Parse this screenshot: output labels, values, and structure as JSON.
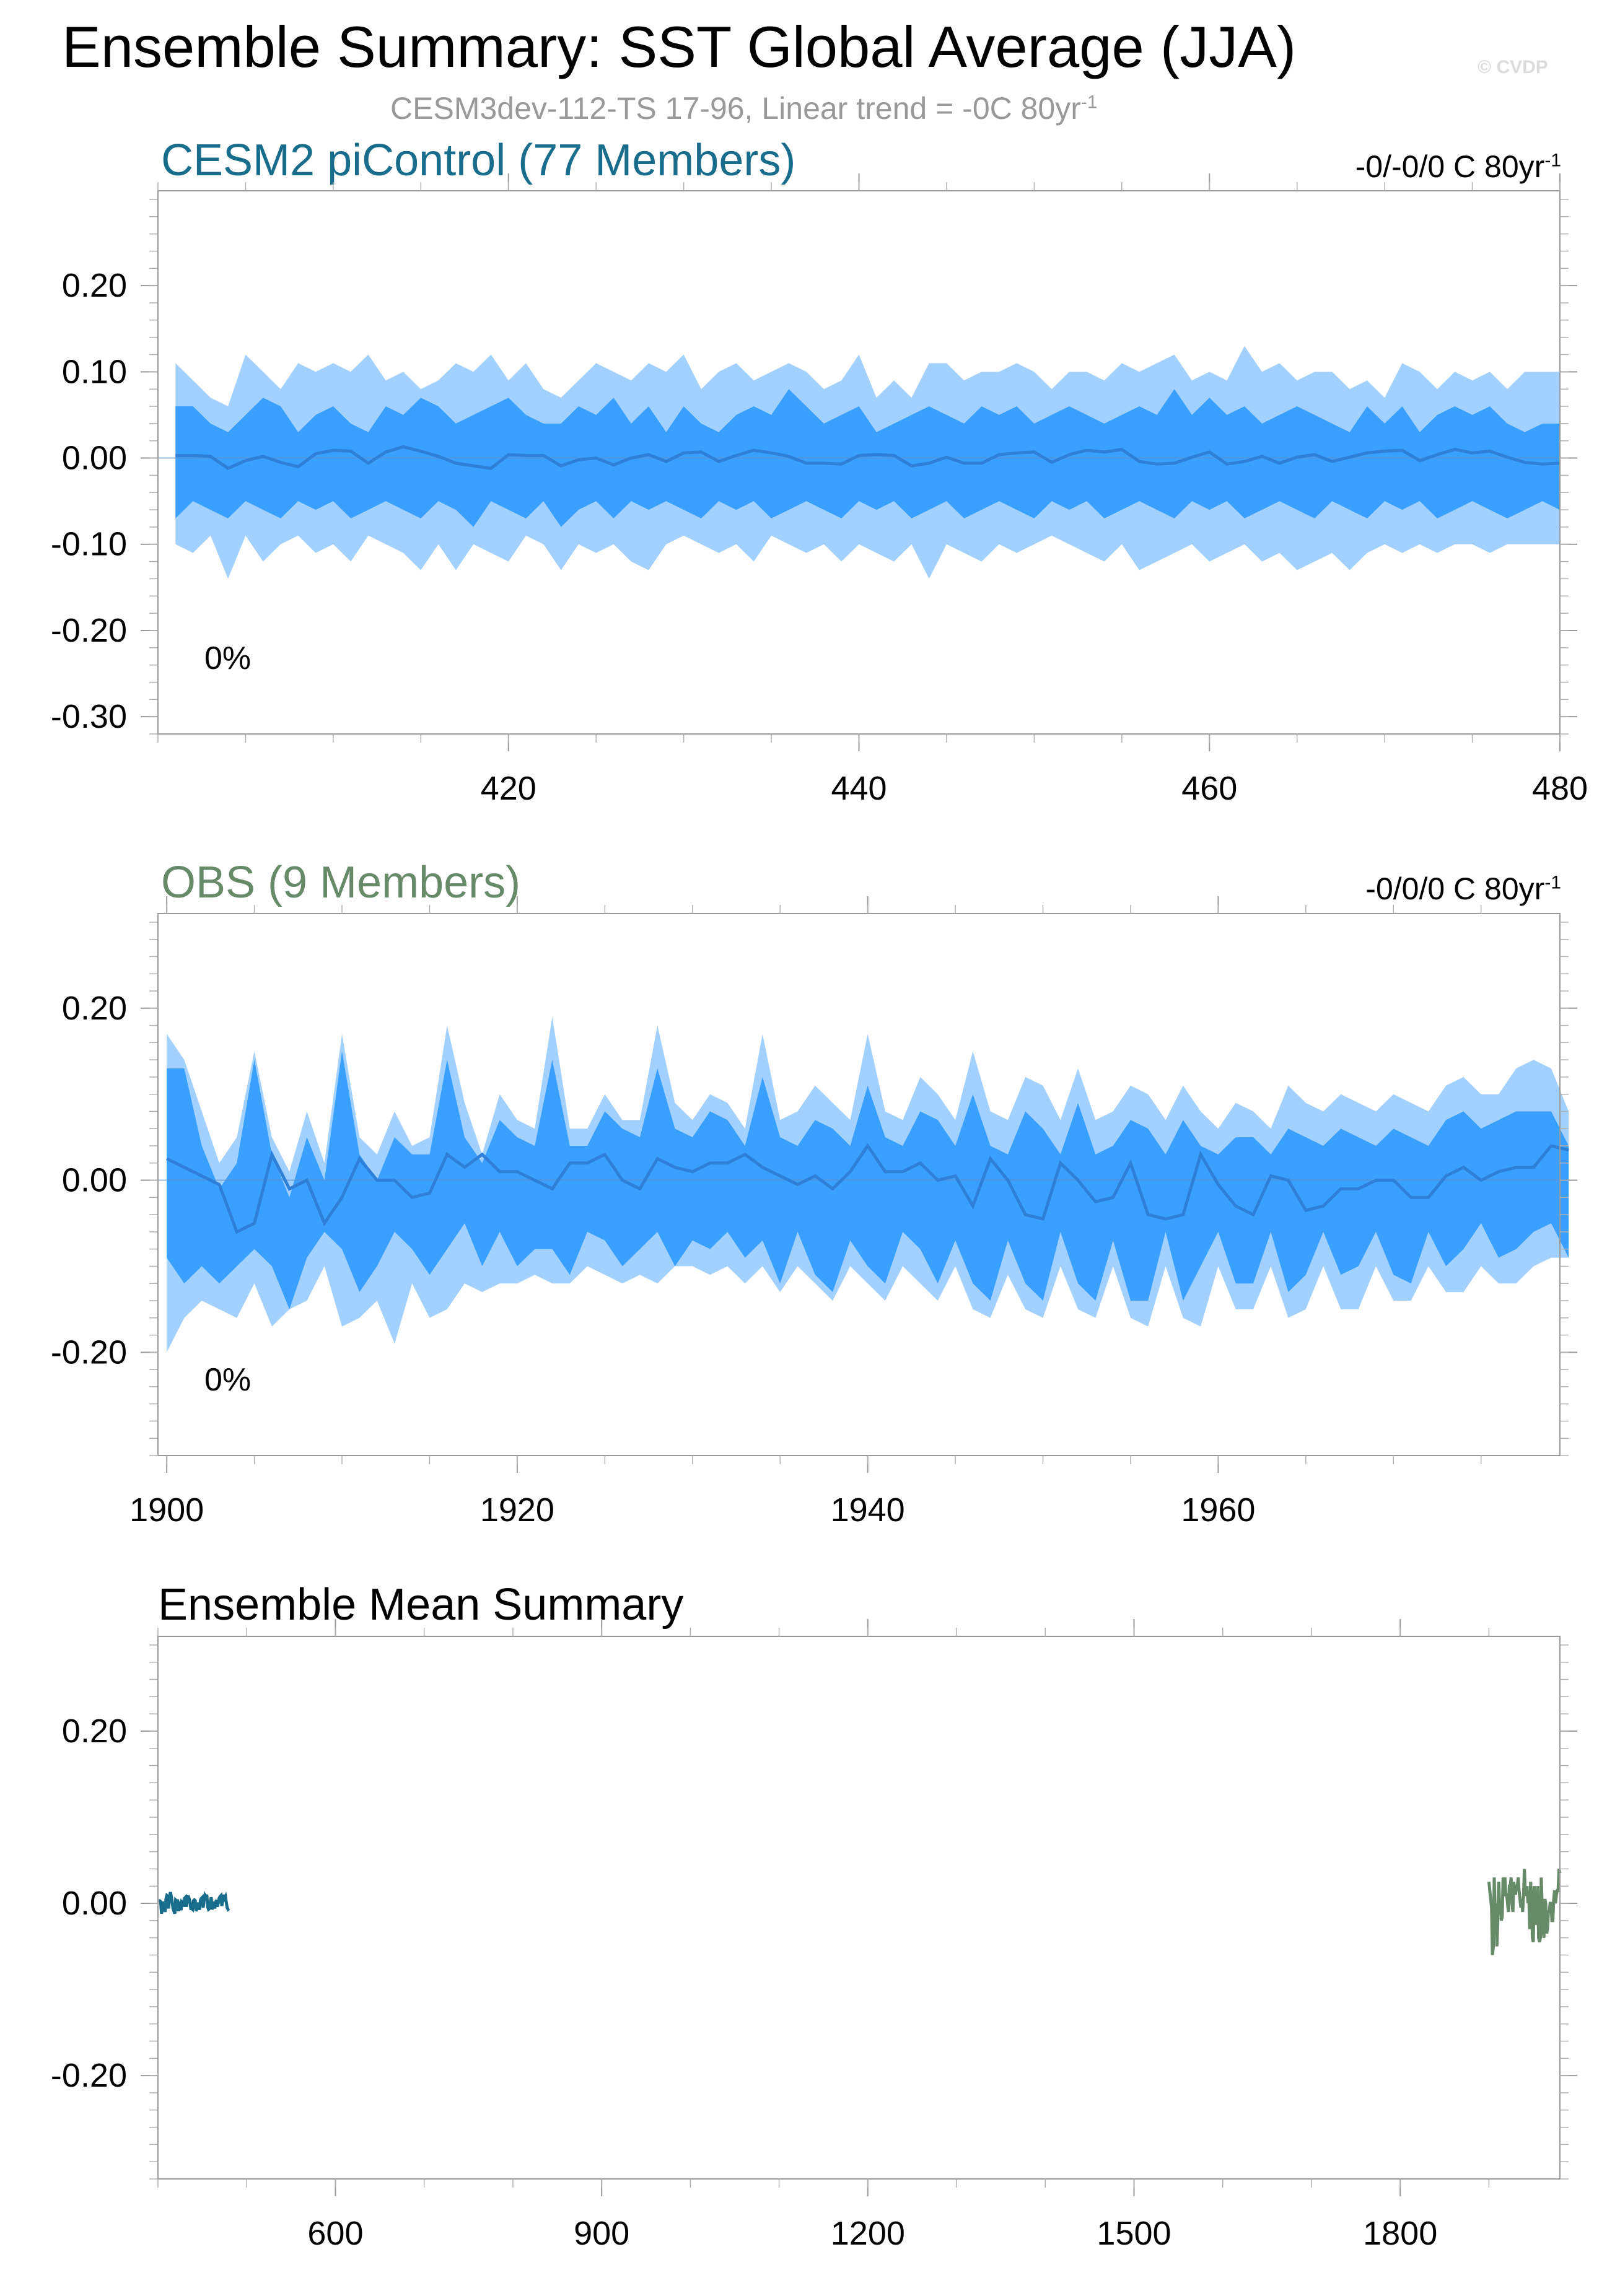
{
  "title": "Ensemble Summary: SST Global Average (JJA)",
  "credit": "© CVDP",
  "subtitle": {
    "text": "CESM3dev-112-TS 17-96, Linear trend = -0C 80yr",
    "sup": "-1"
  },
  "colors": {
    "band_outer": "#a3d1ff",
    "band_inner": "#3aa0ff",
    "mean_line": "#2d7fd8",
    "model_title": "#186c8c",
    "obs_title": "#678b68",
    "model_line": "#186c8c",
    "obs_line": "#678b68"
  },
  "panels": [
    {
      "title": "CESM2 piControl (77 Members)",
      "trend_text": "-0/-0/0 C 80yr",
      "trend_sup": "-1",
      "percent_label": "0%"
    },
    {
      "title": "OBS (9 Members)",
      "trend_text": "-0/0/0 C 80yr",
      "trend_sup": "-1",
      "percent_label": "0%"
    },
    {
      "title": "Ensemble Mean Summary"
    }
  ],
  "chart_data": [
    {
      "type": "area",
      "title": "CESM2 piControl (77 Members)",
      "x_start": 401,
      "xlim": [
        400,
        480
      ],
      "ylim": [
        -0.32,
        0.31
      ],
      "x_ticks": [
        420,
        440,
        460,
        480
      ],
      "x_tick_labels": [
        "420",
        "440",
        "460",
        "480"
      ],
      "y_ticks": [
        0.2,
        0.1,
        0.0,
        -0.1,
        -0.2,
        -0.3
      ],
      "y_tick_labels": [
        "0.20",
        "0.10",
        "0.00",
        "-0.10",
        "-0.20",
        "-0.30"
      ],
      "series": [
        {
          "name": "max",
          "values": [
            0.11,
            0.09,
            0.07,
            0.06,
            0.12,
            0.1,
            0.08,
            0.11,
            0.1,
            0.11,
            0.1,
            0.12,
            0.09,
            0.1,
            0.08,
            0.09,
            0.11,
            0.1,
            0.12,
            0.09,
            0.11,
            0.08,
            0.07,
            0.09,
            0.11,
            0.1,
            0.09,
            0.11,
            0.1,
            0.12,
            0.08,
            0.1,
            0.11,
            0.09,
            0.1,
            0.11,
            0.1,
            0.08,
            0.09,
            0.12,
            0.07,
            0.09,
            0.07,
            0.11,
            0.11,
            0.09,
            0.1,
            0.1,
            0.11,
            0.1,
            0.08,
            0.1,
            0.1,
            0.09,
            0.11,
            0.1,
            0.11,
            0.12,
            0.09,
            0.1,
            0.09,
            0.13,
            0.1,
            0.11,
            0.09,
            0.1,
            0.1,
            0.08,
            0.09,
            0.07,
            0.11,
            0.1,
            0.08,
            0.1,
            0.09,
            0.1,
            0.08,
            0.1,
            0.1,
            0.1
          ]
        },
        {
          "name": "p84",
          "values": [
            0.06,
            0.06,
            0.04,
            0.03,
            0.05,
            0.07,
            0.06,
            0.03,
            0.05,
            0.06,
            0.04,
            0.03,
            0.06,
            0.05,
            0.07,
            0.06,
            0.04,
            0.05,
            0.06,
            0.07,
            0.05,
            0.04,
            0.04,
            0.06,
            0.05,
            0.07,
            0.04,
            0.06,
            0.03,
            0.06,
            0.04,
            0.03,
            0.05,
            0.06,
            0.05,
            0.08,
            0.06,
            0.04,
            0.05,
            0.06,
            0.03,
            0.04,
            0.05,
            0.06,
            0.05,
            0.04,
            0.06,
            0.05,
            0.06,
            0.04,
            0.05,
            0.06,
            0.05,
            0.04,
            0.05,
            0.06,
            0.05,
            0.08,
            0.05,
            0.07,
            0.05,
            0.06,
            0.04,
            0.05,
            0.06,
            0.05,
            0.04,
            0.03,
            0.06,
            0.04,
            0.06,
            0.03,
            0.05,
            0.06,
            0.05,
            0.06,
            0.04,
            0.03,
            0.04,
            0.04
          ]
        },
        {
          "name": "mean",
          "values": [
            0.003,
            0.003,
            0.002,
            -0.012,
            -0.003,
            0.002,
            -0.005,
            -0.01,
            0.005,
            0.009,
            0.008,
            -0.006,
            0.007,
            0.013,
            0.008,
            0.002,
            -0.006,
            -0.009,
            -0.012,
            0.004,
            0.003,
            0.003,
            -0.009,
            -0.002,
            0.0,
            -0.008,
            0.0,
            0.004,
            -0.004,
            0.006,
            0.007,
            -0.004,
            0.003,
            0.009,
            0.006,
            0.002,
            -0.006,
            -0.006,
            -0.007,
            0.003,
            0.004,
            0.003,
            -0.009,
            -0.006,
            0.001,
            -0.006,
            -0.006,
            0.004,
            0.006,
            0.007,
            -0.005,
            0.004,
            0.009,
            0.007,
            0.01,
            -0.004,
            -0.007,
            -0.006,
            0.001,
            0.007,
            -0.007,
            -0.004,
            0.002,
            -0.006,
            0.001,
            0.004,
            -0.004,
            0.001,
            0.006,
            0.008,
            0.009,
            -0.003,
            0.004,
            0.01,
            0.006,
            0.008,
            0.001,
            -0.005,
            -0.007,
            -0.006
          ]
        },
        {
          "name": "p16",
          "values": [
            -0.07,
            -0.05,
            -0.06,
            -0.07,
            -0.05,
            -0.06,
            -0.07,
            -0.05,
            -0.06,
            -0.05,
            -0.07,
            -0.06,
            -0.05,
            -0.06,
            -0.07,
            -0.05,
            -0.06,
            -0.08,
            -0.05,
            -0.06,
            -0.07,
            -0.05,
            -0.08,
            -0.06,
            -0.05,
            -0.07,
            -0.05,
            -0.06,
            -0.05,
            -0.06,
            -0.07,
            -0.05,
            -0.06,
            -0.05,
            -0.07,
            -0.06,
            -0.05,
            -0.06,
            -0.07,
            -0.05,
            -0.06,
            -0.05,
            -0.07,
            -0.06,
            -0.05,
            -0.07,
            -0.06,
            -0.05,
            -0.06,
            -0.07,
            -0.05,
            -0.06,
            -0.05,
            -0.07,
            -0.06,
            -0.05,
            -0.06,
            -0.07,
            -0.05,
            -0.06,
            -0.05,
            -0.07,
            -0.06,
            -0.05,
            -0.06,
            -0.07,
            -0.05,
            -0.06,
            -0.07,
            -0.05,
            -0.06,
            -0.05,
            -0.07,
            -0.06,
            -0.05,
            -0.06,
            -0.07,
            -0.06,
            -0.05,
            -0.06
          ]
        },
        {
          "name": "min",
          "values": [
            -0.1,
            -0.11,
            -0.09,
            -0.14,
            -0.09,
            -0.12,
            -0.1,
            -0.09,
            -0.11,
            -0.1,
            -0.12,
            -0.09,
            -0.1,
            -0.11,
            -0.13,
            -0.1,
            -0.13,
            -0.1,
            -0.11,
            -0.12,
            -0.09,
            -0.1,
            -0.13,
            -0.1,
            -0.11,
            -0.1,
            -0.12,
            -0.13,
            -0.1,
            -0.09,
            -0.1,
            -0.11,
            -0.1,
            -0.12,
            -0.09,
            -0.1,
            -0.11,
            -0.1,
            -0.12,
            -0.1,
            -0.11,
            -0.12,
            -0.1,
            -0.14,
            -0.1,
            -0.11,
            -0.12,
            -0.1,
            -0.11,
            -0.1,
            -0.09,
            -0.1,
            -0.11,
            -0.12,
            -0.1,
            -0.13,
            -0.12,
            -0.11,
            -0.1,
            -0.12,
            -0.11,
            -0.1,
            -0.12,
            -0.11,
            -0.13,
            -0.12,
            -0.11,
            -0.13,
            -0.11,
            -0.1,
            -0.11,
            -0.1,
            -0.11,
            -0.1,
            -0.1,
            -0.11,
            -0.1,
            -0.1,
            -0.1,
            -0.1
          ]
        }
      ]
    },
    {
      "type": "area",
      "title": "OBS (9 Members)",
      "x_start": 1900,
      "xlim": [
        1899.5,
        1979.5
      ],
      "ylim": [
        -0.32,
        0.31
      ],
      "x_ticks": [
        1900,
        1920,
        1940,
        1960
      ],
      "x_tick_labels": [
        "1900",
        "1920",
        "1940",
        "1960"
      ],
      "y_ticks": [
        0.2,
        0.0,
        -0.2
      ],
      "y_tick_labels": [
        "0.20",
        "0.00",
        "-0.20"
      ],
      "series": [
        {
          "name": "max",
          "values": [
            0.17,
            0.14,
            0.08,
            0.02,
            0.05,
            0.15,
            0.05,
            0.01,
            0.08,
            0.02,
            0.17,
            0.05,
            0.03,
            0.08,
            0.04,
            0.05,
            0.18,
            0.09,
            0.03,
            0.1,
            0.07,
            0.06,
            0.19,
            0.06,
            0.06,
            0.1,
            0.07,
            0.07,
            0.18,
            0.09,
            0.07,
            0.1,
            0.09,
            0.06,
            0.17,
            0.07,
            0.08,
            0.11,
            0.09,
            0.07,
            0.17,
            0.08,
            0.07,
            0.12,
            0.1,
            0.07,
            0.15,
            0.08,
            0.07,
            0.12,
            0.11,
            0.07,
            0.13,
            0.07,
            0.08,
            0.11,
            0.1,
            0.07,
            0.11,
            0.08,
            0.06,
            0.09,
            0.08,
            0.06,
            0.11,
            0.09,
            0.08,
            0.1,
            0.09,
            0.08,
            0.1,
            0.09,
            0.08,
            0.11,
            0.12,
            0.1,
            0.1,
            0.13,
            0.14,
            0.13,
            0.08
          ]
        },
        {
          "name": "p84",
          "values": [
            0.13,
            0.13,
            0.04,
            -0.01,
            0.02,
            0.14,
            0.03,
            -0.02,
            0.05,
            0.0,
            0.15,
            0.03,
            0.0,
            0.05,
            0.03,
            0.03,
            0.14,
            0.05,
            0.02,
            0.07,
            0.05,
            0.04,
            0.14,
            0.04,
            0.04,
            0.08,
            0.06,
            0.05,
            0.13,
            0.06,
            0.05,
            0.08,
            0.07,
            0.04,
            0.12,
            0.05,
            0.04,
            0.07,
            0.06,
            0.04,
            0.11,
            0.05,
            0.04,
            0.08,
            0.07,
            0.04,
            0.1,
            0.04,
            0.03,
            0.08,
            0.06,
            0.03,
            0.09,
            0.03,
            0.04,
            0.07,
            0.06,
            0.03,
            0.07,
            0.04,
            0.03,
            0.05,
            0.05,
            0.03,
            0.06,
            0.05,
            0.04,
            0.06,
            0.05,
            0.04,
            0.06,
            0.05,
            0.04,
            0.07,
            0.08,
            0.06,
            0.07,
            0.08,
            0.08,
            0.08,
            0.04
          ]
        },
        {
          "name": "mean",
          "values": [
            0.025,
            0.015,
            0.005,
            -0.005,
            -0.06,
            -0.05,
            0.03,
            -0.01,
            0.0,
            -0.05,
            -0.02,
            0.025,
            0.0,
            0.0,
            -0.02,
            -0.015,
            0.03,
            0.015,
            0.03,
            0.01,
            0.01,
            0.0,
            -0.01,
            0.02,
            0.02,
            0.03,
            0.0,
            -0.01,
            0.025,
            0.015,
            0.01,
            0.02,
            0.02,
            0.03,
            0.015,
            0.005,
            -0.005,
            0.005,
            -0.01,
            0.01,
            0.04,
            0.01,
            0.01,
            0.02,
            0.0,
            0.005,
            -0.03,
            0.025,
            0.0,
            -0.04,
            -0.045,
            0.02,
            0.0,
            -0.025,
            -0.02,
            0.02,
            -0.04,
            -0.045,
            -0.04,
            0.03,
            -0.005,
            -0.03,
            -0.04,
            0.005,
            0.0,
            -0.035,
            -0.03,
            -0.01,
            -0.01,
            0.0,
            0.0,
            -0.02,
            -0.02,
            0.005,
            0.015,
            0.0,
            0.01,
            0.015,
            0.015,
            0.04,
            0.035
          ]
        },
        {
          "name": "p16",
          "values": [
            -0.09,
            -0.12,
            -0.1,
            -0.12,
            -0.1,
            -0.08,
            -0.1,
            -0.15,
            -0.09,
            -0.06,
            -0.08,
            -0.13,
            -0.1,
            -0.06,
            -0.08,
            -0.11,
            -0.08,
            -0.05,
            -0.1,
            -0.06,
            -0.1,
            -0.08,
            -0.08,
            -0.11,
            -0.06,
            -0.07,
            -0.1,
            -0.08,
            -0.06,
            -0.1,
            -0.07,
            -0.08,
            -0.06,
            -0.09,
            -0.07,
            -0.12,
            -0.06,
            -0.11,
            -0.13,
            -0.07,
            -0.1,
            -0.12,
            -0.06,
            -0.08,
            -0.12,
            -0.07,
            -0.12,
            -0.14,
            -0.07,
            -0.12,
            -0.14,
            -0.06,
            -0.12,
            -0.14,
            -0.07,
            -0.14,
            -0.14,
            -0.06,
            -0.14,
            -0.1,
            -0.06,
            -0.12,
            -0.12,
            -0.06,
            -0.13,
            -0.11,
            -0.06,
            -0.11,
            -0.1,
            -0.06,
            -0.11,
            -0.12,
            -0.06,
            -0.1,
            -0.08,
            -0.05,
            -0.09,
            -0.08,
            -0.06,
            -0.05,
            -0.09
          ]
        },
        {
          "name": "min",
          "values": [
            -0.2,
            -0.16,
            -0.14,
            -0.15,
            -0.16,
            -0.12,
            -0.17,
            -0.15,
            -0.14,
            -0.1,
            -0.17,
            -0.16,
            -0.14,
            -0.19,
            -0.12,
            -0.16,
            -0.15,
            -0.12,
            -0.13,
            -0.12,
            -0.12,
            -0.11,
            -0.12,
            -0.12,
            -0.1,
            -0.11,
            -0.12,
            -0.11,
            -0.12,
            -0.1,
            -0.1,
            -0.11,
            -0.1,
            -0.12,
            -0.1,
            -0.13,
            -0.1,
            -0.12,
            -0.14,
            -0.1,
            -0.12,
            -0.14,
            -0.1,
            -0.12,
            -0.14,
            -0.1,
            -0.15,
            -0.16,
            -0.11,
            -0.15,
            -0.16,
            -0.1,
            -0.15,
            -0.16,
            -0.1,
            -0.16,
            -0.17,
            -0.1,
            -0.16,
            -0.17,
            -0.1,
            -0.15,
            -0.15,
            -0.1,
            -0.16,
            -0.15,
            -0.1,
            -0.15,
            -0.15,
            -0.1,
            -0.14,
            -0.14,
            -0.1,
            -0.13,
            -0.13,
            -0.1,
            -0.12,
            -0.12,
            -0.1,
            -0.09,
            -0.09
          ]
        }
      ]
    },
    {
      "type": "line",
      "title": "Ensemble Mean Summary",
      "xlim": [
        400,
        1980
      ],
      "ylim": [
        -0.32,
        0.31
      ],
      "x_ticks": [
        600,
        900,
        1200,
        1500,
        1800
      ],
      "x_tick_labels": [
        "600",
        "900",
        "1200",
        "1500",
        "1800"
      ],
      "y_ticks": [
        0.2,
        0.0,
        -0.2
      ],
      "y_tick_labels": [
        "0.20",
        "0.00",
        "-0.20"
      ],
      "series_refs": [
        {
          "name": "CESM2 piControl ensemble mean",
          "source_panel": 0,
          "color_key": "model_line"
        },
        {
          "name": "OBS ensemble mean",
          "source_panel": 1,
          "color_key": "obs_line"
        }
      ]
    }
  ]
}
